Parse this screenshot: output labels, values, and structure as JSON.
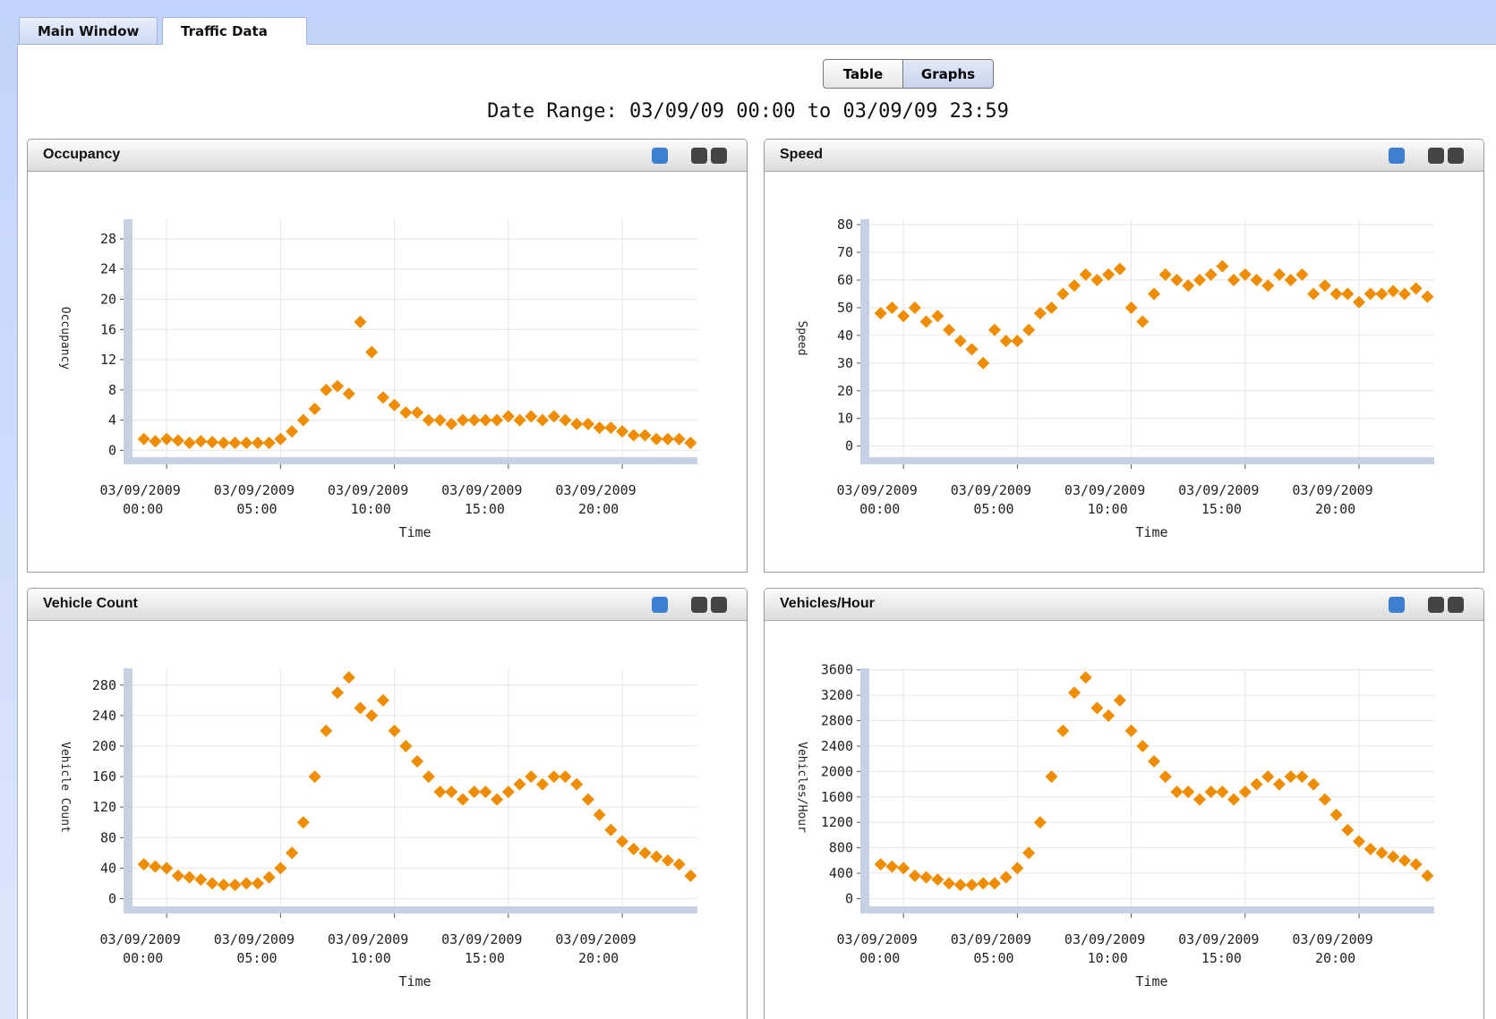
{
  "tabs": [
    "Main Window",
    "Traffic Data"
  ],
  "buttons": [
    "Table",
    "Graphs"
  ],
  "date_range": "Date Range: 03/09/09 00:00 to 03/09/09 23:59",
  "chart_data": [
    {
      "type": "scatter",
      "title": "Occupancy",
      "xlabel": "Time",
      "ylabel": "Occupancy",
      "color": "#f08c00",
      "grid": true,
      "x": [
        -1,
        -0.5,
        0,
        0.5,
        1,
        1.5,
        2,
        2.5,
        3,
        3.5,
        4,
        4.5,
        5,
        5.5,
        6,
        6.5,
        7,
        7.5,
        8,
        8.5,
        9,
        9.5,
        10,
        10.5,
        11,
        11.5,
        12,
        12.5,
        13,
        13.5,
        14,
        14.5,
        15,
        15.5,
        16,
        16.5,
        17,
        17.5,
        18,
        18.5,
        19,
        19.5,
        20,
        20.5,
        21,
        21.5,
        22,
        22.5,
        23
      ],
      "values": [
        1.5,
        1.2,
        1.5,
        1.3,
        1,
        1.2,
        1.1,
        1,
        1,
        1,
        1,
        1,
        1.5,
        2.5,
        4,
        5.5,
        8,
        8.5,
        7.5,
        17,
        13,
        7,
        6,
        5,
        5,
        4,
        4,
        3.5,
        4,
        4,
        4,
        4,
        4.5,
        4,
        4.5,
        4,
        4.5,
        4,
        3.5,
        3.5,
        3,
        3,
        2.5,
        2,
        2,
        1.5,
        1.5,
        1.5,
        1
      ],
      "xlim": [
        -1.5,
        23.3
      ],
      "ylim": [
        -0.9,
        30.6
      ],
      "xticks": [
        {
          "value": 0,
          "label": "03/09/2009 00:00"
        },
        {
          "value": 5,
          "label": "03/09/2009 05:00"
        },
        {
          "value": 10,
          "label": "03/09/2009 10:00"
        },
        {
          "value": 15,
          "label": "03/09/2009 15:00"
        },
        {
          "value": 20,
          "label": "03/09/2009 20:00"
        }
      ],
      "yticks": [
        0,
        4,
        8,
        12,
        16,
        20,
        24,
        28
      ]
    },
    {
      "type": "scatter",
      "title": "Speed",
      "xlabel": "Time",
      "ylabel": "Speed",
      "color": "#f08c00",
      "grid": true,
      "x": [
        -1,
        -0.5,
        0,
        0.5,
        1,
        1.5,
        2,
        2.5,
        3,
        3.5,
        4,
        4.5,
        5,
        5.5,
        6,
        6.5,
        7,
        7.5,
        8,
        8.5,
        9,
        9.5,
        10,
        10.5,
        11,
        11.5,
        12,
        12.5,
        13,
        13.5,
        14,
        14.5,
        15,
        15.5,
        16,
        16.5,
        17,
        17.5,
        18,
        18.5,
        19,
        19.5,
        20,
        20.5,
        21,
        21.5,
        22,
        22.5,
        23
      ],
      "values": [
        48,
        50,
        47,
        50,
        45,
        47,
        42,
        38,
        35,
        30,
        42,
        38,
        38,
        42,
        48,
        50,
        55,
        58,
        62,
        60,
        62,
        64,
        50,
        45,
        55,
        62,
        60,
        58,
        60,
        62,
        65,
        60,
        62,
        60,
        58,
        62,
        60,
        62,
        55,
        58,
        55,
        55,
        52,
        55,
        55,
        56,
        55,
        57,
        54
      ],
      "xlim": [
        -1.5,
        23.3
      ],
      "ylim": [
        -4,
        82
      ],
      "xticks": [
        {
          "value": 0,
          "label": "03/09/2009 00:00"
        },
        {
          "value": 5,
          "label": "03/09/2009 05:00"
        },
        {
          "value": 10,
          "label": "03/09/2009 10:00"
        },
        {
          "value": 15,
          "label": "03/09/2009 15:00"
        },
        {
          "value": 20,
          "label": "03/09/2009 20:00"
        }
      ],
      "yticks": [
        0,
        10,
        20,
        30,
        40,
        50,
        60,
        70,
        80
      ]
    },
    {
      "type": "scatter",
      "title": "Vehicle Count",
      "xlabel": "Time",
      "ylabel": "Vehicle Count",
      "color": "#f08c00",
      "grid": true,
      "x": [
        -1,
        -0.5,
        0,
        0.5,
        1,
        1.5,
        2,
        2.5,
        3,
        3.5,
        4,
        4.5,
        5,
        5.5,
        6,
        6.5,
        7,
        7.5,
        8,
        8.5,
        9,
        9.5,
        10,
        10.5,
        11,
        11.5,
        12,
        12.5,
        13,
        13.5,
        14,
        14.5,
        15,
        15.5,
        16,
        16.5,
        17,
        17.5,
        18,
        18.5,
        19,
        19.5,
        20,
        20.5,
        21,
        21.5,
        22,
        22.5,
        23
      ],
      "values": [
        45,
        42,
        40,
        30,
        28,
        25,
        20,
        18,
        18,
        20,
        20,
        28,
        40,
        60,
        100,
        160,
        220,
        270,
        290,
        250,
        240,
        260,
        220,
        200,
        180,
        160,
        140,
        140,
        130,
        140,
        140,
        130,
        140,
        150,
        160,
        150,
        160,
        160,
        150,
        130,
        110,
        90,
        75,
        65,
        60,
        55,
        50,
        45,
        30
      ],
      "xlim": [
        -1.5,
        23.3
      ],
      "ylim": [
        -10,
        302
      ],
      "xticks": [
        {
          "value": 0,
          "label": "03/09/2009 00:00"
        },
        {
          "value": 5,
          "label": "03/09/2009 05:00"
        },
        {
          "value": 10,
          "label": "03/09/2009 10:00"
        },
        {
          "value": 15,
          "label": "03/09/2009 15:00"
        },
        {
          "value": 20,
          "label": "03/09/2009 20:00"
        }
      ],
      "yticks": [
        0,
        40,
        80,
        120,
        160,
        200,
        240,
        280
      ]
    },
    {
      "type": "scatter",
      "title": "Vehicles/Hour",
      "xlabel": "Time",
      "ylabel": "Vehicles/Hour",
      "color": "#f08c00",
      "grid": true,
      "x": [
        -1,
        -0.5,
        0,
        0.5,
        1,
        1.5,
        2,
        2.5,
        3,
        3.5,
        4,
        4.5,
        5,
        5.5,
        6,
        6.5,
        7,
        7.5,
        8,
        8.5,
        9,
        9.5,
        10,
        10.5,
        11,
        11.5,
        12,
        12.5,
        13,
        13.5,
        14,
        14.5,
        15,
        15.5,
        16,
        16.5,
        17,
        17.5,
        18,
        18.5,
        19,
        19.5,
        20,
        20.5,
        21,
        21.5,
        22,
        22.5,
        23
      ],
      "values": [
        540,
        504,
        480,
        360,
        336,
        300,
        240,
        216,
        216,
        240,
        240,
        336,
        480,
        720,
        1200,
        1920,
        2640,
        3240,
        3480,
        3000,
        2880,
        3120,
        2640,
        2400,
        2160,
        1920,
        1680,
        1680,
        1560,
        1680,
        1680,
        1560,
        1680,
        1800,
        1920,
        1800,
        1920,
        1920,
        1800,
        1560,
        1320,
        1080,
        900,
        780,
        720,
        660,
        600,
        540,
        360
      ],
      "xlim": [
        -1.5,
        23.3
      ],
      "ylim": [
        -120,
        3624
      ],
      "xticks": [
        {
          "value": 0,
          "label": "03/09/2009 00:00"
        },
        {
          "value": 5,
          "label": "03/09/2009 05:00"
        },
        {
          "value": 10,
          "label": "03/09/2009 10:00"
        },
        {
          "value": 15,
          "label": "03/09/2009 15:00"
        },
        {
          "value": 20,
          "label": "03/09/2009 20:00"
        }
      ],
      "yticks": [
        0,
        400,
        800,
        1200,
        1600,
        2000,
        2400,
        2800,
        3200,
        3600
      ]
    }
  ]
}
